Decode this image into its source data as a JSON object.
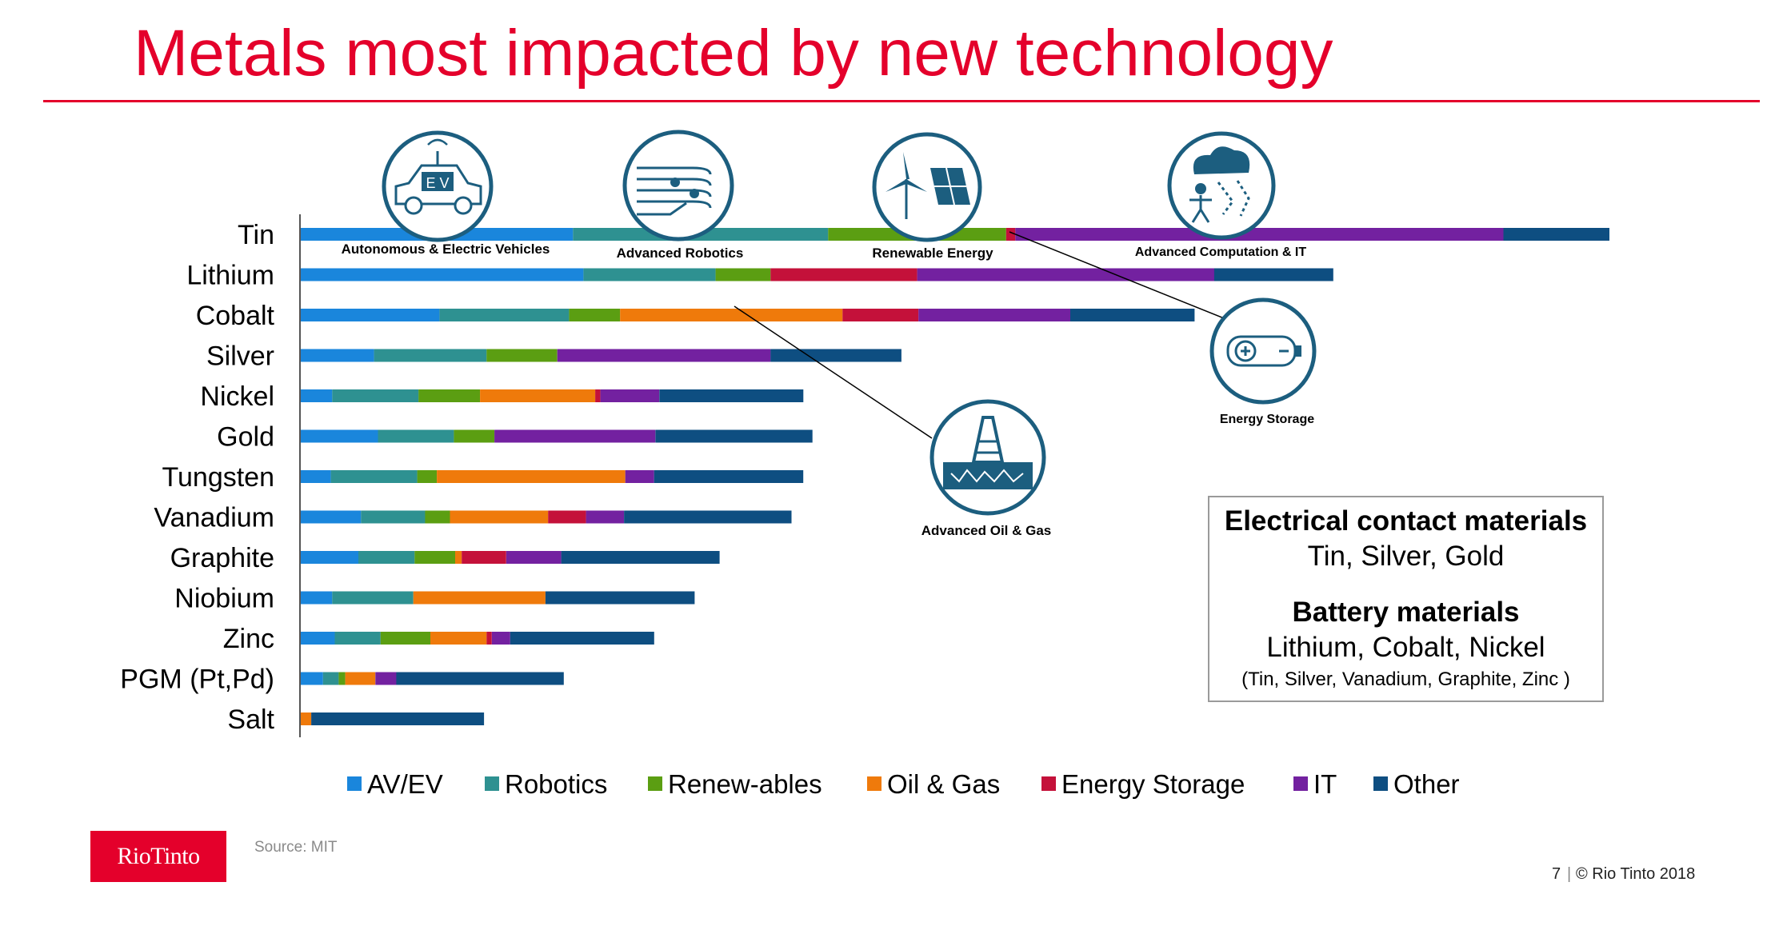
{
  "slide": {
    "title": "Metals most impacted by new technology",
    "source": "Source: MIT",
    "page_number": "7",
    "separator": "|",
    "copyright": "© Rio Tinto 2018",
    "logo_text": "RioTinto"
  },
  "colors": {
    "AV/EV": "#1a86dc",
    "Robotics": "#2e9191",
    "Renew-ables": "#5b9e12",
    "Oil & Gas": "#ef7a0b",
    "Energy Storage": "#c4113a",
    "IT": "#7321a0",
    "Other": "#0e4e81",
    "title": "#e4002b",
    "icon": "#1c5e7f"
  },
  "chart_data": {
    "type": "bar",
    "orientation": "horizontal",
    "stacked": true,
    "title": "",
    "xlabel": "",
    "ylabel": "",
    "xlim": [
      0,
      100
    ],
    "legend_position": "bottom",
    "categories": [
      "Tin",
      "Lithium",
      "Cobalt",
      "Silver",
      "Nickel",
      "Gold",
      "Tungsten",
      "Vanadium",
      "Graphite",
      "Niobium",
      "Zinc",
      "PGM (Pt,Pd)",
      "Salt"
    ],
    "series": [
      {
        "name": "AV/EV",
        "values": [
          20.8,
          21.6,
          10.6,
          5.6,
          2.4,
          5.9,
          2.3,
          4.6,
          4.4,
          2.4,
          2.6,
          1.7,
          0.0
        ]
      },
      {
        "name": "Robotics",
        "values": [
          19.5,
          10.1,
          9.9,
          8.6,
          6.6,
          5.8,
          6.6,
          4.9,
          4.3,
          6.2,
          3.5,
          1.2,
          0.0
        ]
      },
      {
        "name": "Renew-ables",
        "values": [
          13.6,
          4.2,
          3.9,
          5.4,
          4.7,
          3.1,
          1.5,
          1.9,
          3.1,
          0.0,
          3.8,
          0.5,
          0.0
        ]
      },
      {
        "name": "Oil & Gas",
        "values": [
          0.0,
          0.0,
          17.0,
          0.0,
          8.8,
          0.0,
          14.4,
          7.5,
          0.5,
          10.1,
          4.3,
          2.3,
          0.8
        ]
      },
      {
        "name": "Energy Storage",
        "values": [
          0.7,
          11.2,
          5.8,
          0.0,
          0.4,
          0.0,
          0.0,
          2.9,
          3.4,
          0.0,
          0.4,
          0.0,
          0.0
        ]
      },
      {
        "name": "IT",
        "values": [
          37.3,
          22.7,
          11.6,
          16.3,
          4.5,
          12.3,
          2.2,
          2.9,
          4.2,
          0.0,
          1.4,
          1.6,
          0.0
        ]
      },
      {
        "name": "Other",
        "values": [
          8.1,
          9.1,
          9.5,
          10.0,
          11.0,
          12.0,
          11.4,
          12.8,
          12.1,
          11.4,
          11.0,
          12.8,
          13.2
        ]
      }
    ],
    "annotations": [
      {
        "label": "Autonomous & Electric Vehicles",
        "icon": "electric-car-icon"
      },
      {
        "label": "Advanced Robotics",
        "icon": "robotic-hand-icon"
      },
      {
        "label": "Renewable Energy",
        "icon": "wind-solar-icon"
      },
      {
        "label": "Advanced Computation & IT",
        "icon": "cloud-computing-icon"
      },
      {
        "label": "Energy Storage",
        "icon": "battery-icon"
      },
      {
        "label": "Advanced Oil & Gas",
        "icon": "oil-rig-icon"
      }
    ]
  },
  "info_box": {
    "electrical_title": "Electrical contact materials",
    "electrical_items": "Tin, Silver, Gold",
    "battery_title": "Battery materials",
    "battery_items": "Lithium, Cobalt, Nickel",
    "battery_note": "(Tin, Silver, Vanadium, Graphite, Zinc )"
  }
}
